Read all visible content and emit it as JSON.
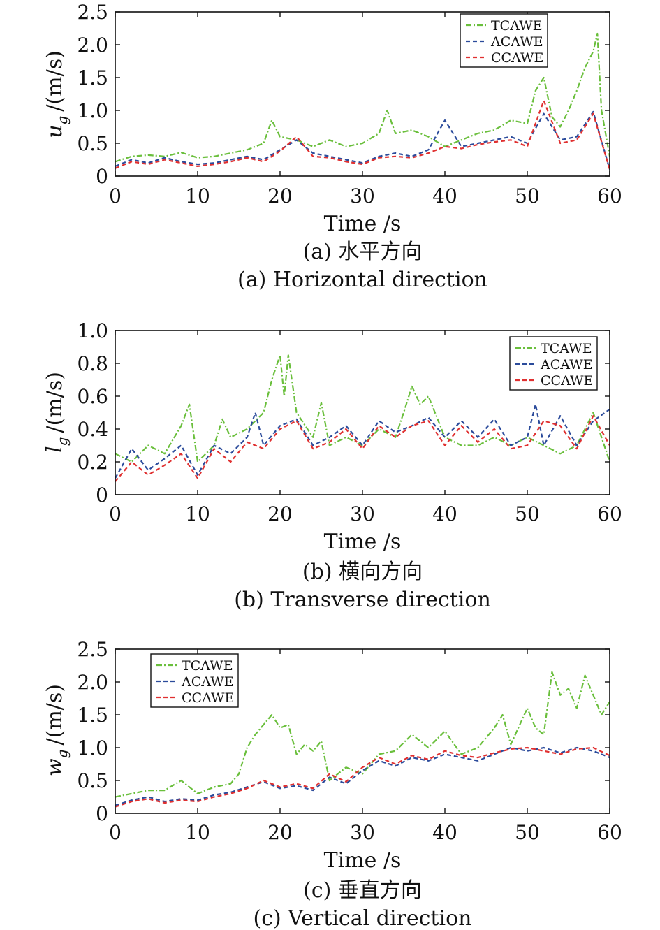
{
  "chart_data": [
    {
      "type": "line",
      "panel": "a",
      "caption_cn": "(a) 水平方向",
      "caption_en": "(a) Horizontal direction",
      "xlabel": "Time /s",
      "ylabel_sym": "u",
      "ylabel_sub": "g",
      "ylabel_unit": "/(m/s)",
      "xlim": [
        0,
        60
      ],
      "ylim": [
        0,
        2.5
      ],
      "xticks": [
        "0",
        "10",
        "20",
        "30",
        "40",
        "50",
        "60"
      ],
      "yticks": [
        "0",
        "0.5",
        "1.0",
        "1.5",
        "2.0",
        "2.5"
      ],
      "legend_position": "top-right",
      "series": [
        {
          "name": "TCAWE",
          "color": "#6abf3c",
          "dash": "8 3 2 3",
          "x": [
            0,
            2,
            4,
            6,
            8,
            10,
            12,
            14,
            16,
            18,
            19,
            20,
            22,
            24,
            26,
            28,
            30,
            32,
            33,
            34,
            36,
            38,
            40,
            42,
            44,
            46,
            48,
            50,
            51,
            52,
            53,
            54,
            55,
            56,
            57,
            58,
            58.5,
            59,
            60
          ],
          "y": [
            0.22,
            0.3,
            0.32,
            0.3,
            0.36,
            0.28,
            0.3,
            0.35,
            0.4,
            0.5,
            0.85,
            0.6,
            0.55,
            0.45,
            0.55,
            0.45,
            0.5,
            0.65,
            1.0,
            0.65,
            0.7,
            0.6,
            0.45,
            0.55,
            0.65,
            0.7,
            0.85,
            0.8,
            1.3,
            1.5,
            0.9,
            0.75,
            1.0,
            1.3,
            1.65,
            1.9,
            2.17,
            1.0,
            0.3
          ]
        },
        {
          "name": "ACAWE",
          "color": "#2b4b9b",
          "dash": "6 4",
          "x": [
            0,
            2,
            4,
            6,
            8,
            10,
            12,
            14,
            16,
            18,
            20,
            22,
            24,
            26,
            28,
            30,
            32,
            34,
            36,
            38,
            40,
            42,
            44,
            46,
            48,
            50,
            52,
            54,
            56,
            58,
            60
          ],
          "y": [
            0.15,
            0.25,
            0.2,
            0.28,
            0.22,
            0.18,
            0.2,
            0.25,
            0.3,
            0.25,
            0.4,
            0.55,
            0.35,
            0.3,
            0.25,
            0.2,
            0.3,
            0.35,
            0.3,
            0.4,
            0.85,
            0.45,
            0.5,
            0.55,
            0.6,
            0.5,
            0.95,
            0.55,
            0.6,
            0.98,
            0.1
          ]
        },
        {
          "name": "CCAWE",
          "color": "#e03030",
          "dash": "6 4",
          "x": [
            0,
            2,
            4,
            6,
            8,
            10,
            12,
            14,
            16,
            18,
            20,
            22,
            24,
            26,
            28,
            30,
            32,
            34,
            36,
            38,
            40,
            42,
            44,
            46,
            48,
            50,
            52,
            54,
            56,
            58,
            60
          ],
          "y": [
            0.12,
            0.22,
            0.18,
            0.25,
            0.2,
            0.15,
            0.18,
            0.22,
            0.28,
            0.22,
            0.38,
            0.6,
            0.3,
            0.28,
            0.22,
            0.18,
            0.28,
            0.3,
            0.28,
            0.35,
            0.45,
            0.42,
            0.48,
            0.52,
            0.55,
            0.45,
            1.15,
            0.5,
            0.55,
            0.95,
            0.1
          ]
        }
      ]
    },
    {
      "type": "line",
      "panel": "b",
      "caption_cn": "(b) 横向方向",
      "caption_en": "(b) Transverse direction",
      "xlabel": "Time /s",
      "ylabel_sym": "l",
      "ylabel_sub": "g",
      "ylabel_unit": "/(m/s)",
      "xlim": [
        0,
        60
      ],
      "ylim": [
        0,
        1.0
      ],
      "xticks": [
        "0",
        "10",
        "20",
        "30",
        "40",
        "50",
        "60"
      ],
      "yticks": [
        "0",
        "0.2",
        "0.4",
        "0.6",
        "0.8",
        "1.0"
      ],
      "legend_position": "top-right",
      "series": [
        {
          "name": "TCAWE",
          "color": "#6abf3c",
          "dash": "8 3 2 3",
          "x": [
            0,
            2,
            4,
            6,
            8,
            9,
            10,
            12,
            13,
            14,
            16,
            18,
            19,
            20,
            20.5,
            21,
            22,
            24,
            25,
            26,
            28,
            30,
            32,
            34,
            35,
            36,
            37,
            38,
            40,
            42,
            44,
            46,
            48,
            50,
            52,
            54,
            56,
            58,
            60
          ],
          "y": [
            0.25,
            0.2,
            0.3,
            0.25,
            0.42,
            0.55,
            0.2,
            0.3,
            0.46,
            0.35,
            0.4,
            0.5,
            0.7,
            0.85,
            0.6,
            0.85,
            0.5,
            0.35,
            0.56,
            0.3,
            0.35,
            0.3,
            0.4,
            0.35,
            0.5,
            0.66,
            0.55,
            0.6,
            0.35,
            0.3,
            0.3,
            0.35,
            0.3,
            0.35,
            0.3,
            0.25,
            0.3,
            0.5,
            0.2
          ]
        },
        {
          "name": "ACAWE",
          "color": "#2b4b9b",
          "dash": "6 4",
          "x": [
            0,
            2,
            4,
            6,
            8,
            10,
            12,
            14,
            16,
            17,
            18,
            20,
            22,
            24,
            26,
            28,
            30,
            32,
            34,
            36,
            38,
            40,
            42,
            44,
            46,
            48,
            50,
            51,
            52,
            54,
            56,
            58,
            60
          ],
          "y": [
            0.1,
            0.28,
            0.15,
            0.22,
            0.3,
            0.12,
            0.3,
            0.25,
            0.35,
            0.5,
            0.3,
            0.42,
            0.46,
            0.3,
            0.35,
            0.42,
            0.3,
            0.45,
            0.38,
            0.42,
            0.47,
            0.35,
            0.45,
            0.35,
            0.46,
            0.3,
            0.35,
            0.55,
            0.3,
            0.48,
            0.3,
            0.45,
            0.52
          ]
        },
        {
          "name": "CCAWE",
          "color": "#e03030",
          "dash": "6 4",
          "x": [
            0,
            2,
            4,
            6,
            8,
            10,
            12,
            14,
            16,
            18,
            20,
            22,
            24,
            26,
            28,
            30,
            32,
            34,
            36,
            38,
            40,
            42,
            44,
            46,
            48,
            50,
            52,
            54,
            56,
            58,
            60
          ],
          "y": [
            0.08,
            0.2,
            0.12,
            0.18,
            0.25,
            0.1,
            0.28,
            0.2,
            0.32,
            0.28,
            0.4,
            0.45,
            0.28,
            0.32,
            0.4,
            0.28,
            0.42,
            0.35,
            0.42,
            0.45,
            0.3,
            0.42,
            0.32,
            0.4,
            0.28,
            0.3,
            0.45,
            0.42,
            0.28,
            0.48,
            0.3
          ]
        }
      ]
    },
    {
      "type": "line",
      "panel": "c",
      "caption_cn": "(c) 垂直方向",
      "caption_en": "(c) Vertical direction",
      "xlabel": "Time /s",
      "ylabel_sym": "w",
      "ylabel_sub": "g",
      "ylabel_unit": "/(m/s)",
      "xlim": [
        0,
        60
      ],
      "ylim": [
        0,
        2.5
      ],
      "xticks": [
        "0",
        "10",
        "20",
        "30",
        "40",
        "50",
        "60"
      ],
      "yticks": [
        "0",
        "0.5",
        "1.0",
        "1.5",
        "2.0",
        "2.5"
      ],
      "legend_position": "top-left",
      "series": [
        {
          "name": "TCAWE",
          "color": "#6abf3c",
          "dash": "8 3 2 3",
          "x": [
            0,
            2,
            4,
            6,
            8,
            10,
            12,
            14,
            15,
            16,
            17,
            18,
            19,
            20,
            21,
            22,
            23,
            24,
            25,
            26,
            28,
            30,
            32,
            34,
            36,
            38,
            40,
            42,
            44,
            46,
            47,
            48,
            50,
            51,
            52,
            53,
            54,
            55,
            56,
            57,
            58,
            59,
            60
          ],
          "y": [
            0.25,
            0.3,
            0.35,
            0.35,
            0.5,
            0.3,
            0.4,
            0.45,
            0.6,
            1.0,
            1.2,
            1.35,
            1.5,
            1.3,
            1.35,
            0.9,
            1.05,
            0.95,
            1.1,
            0.5,
            0.7,
            0.6,
            0.9,
            0.95,
            1.2,
            1.0,
            1.25,
            0.9,
            1.0,
            1.3,
            1.5,
            1.05,
            1.6,
            1.3,
            1.2,
            2.15,
            1.8,
            1.9,
            1.6,
            2.1,
            1.8,
            1.5,
            1.7
          ]
        },
        {
          "name": "ACAWE",
          "color": "#2b4b9b",
          "dash": "6 4",
          "x": [
            0,
            2,
            4,
            6,
            8,
            10,
            12,
            14,
            16,
            18,
            20,
            22,
            24,
            26,
            28,
            30,
            32,
            34,
            36,
            38,
            40,
            42,
            44,
            46,
            48,
            50,
            52,
            54,
            56,
            58,
            60
          ],
          "y": [
            0.12,
            0.2,
            0.25,
            0.18,
            0.22,
            0.2,
            0.28,
            0.32,
            0.4,
            0.48,
            0.38,
            0.42,
            0.35,
            0.55,
            0.45,
            0.65,
            0.8,
            0.72,
            0.85,
            0.8,
            0.9,
            0.85,
            0.8,
            0.9,
            1.0,
            0.95,
            1.0,
            0.92,
            1.0,
            0.95,
            0.85
          ]
        },
        {
          "name": "CCAWE",
          "color": "#e03030",
          "dash": "6 4",
          "x": [
            0,
            2,
            4,
            6,
            8,
            10,
            12,
            14,
            16,
            18,
            20,
            22,
            24,
            26,
            28,
            30,
            32,
            34,
            36,
            38,
            40,
            42,
            44,
            46,
            48,
            50,
            52,
            54,
            56,
            58,
            60
          ],
          "y": [
            0.1,
            0.18,
            0.22,
            0.16,
            0.2,
            0.18,
            0.25,
            0.3,
            0.38,
            0.5,
            0.4,
            0.45,
            0.38,
            0.6,
            0.48,
            0.7,
            0.85,
            0.75,
            0.88,
            0.82,
            0.95,
            0.88,
            0.85,
            0.92,
            0.98,
            1.0,
            0.95,
            0.9,
            0.98,
            1.0,
            0.88
          ]
        }
      ]
    }
  ]
}
